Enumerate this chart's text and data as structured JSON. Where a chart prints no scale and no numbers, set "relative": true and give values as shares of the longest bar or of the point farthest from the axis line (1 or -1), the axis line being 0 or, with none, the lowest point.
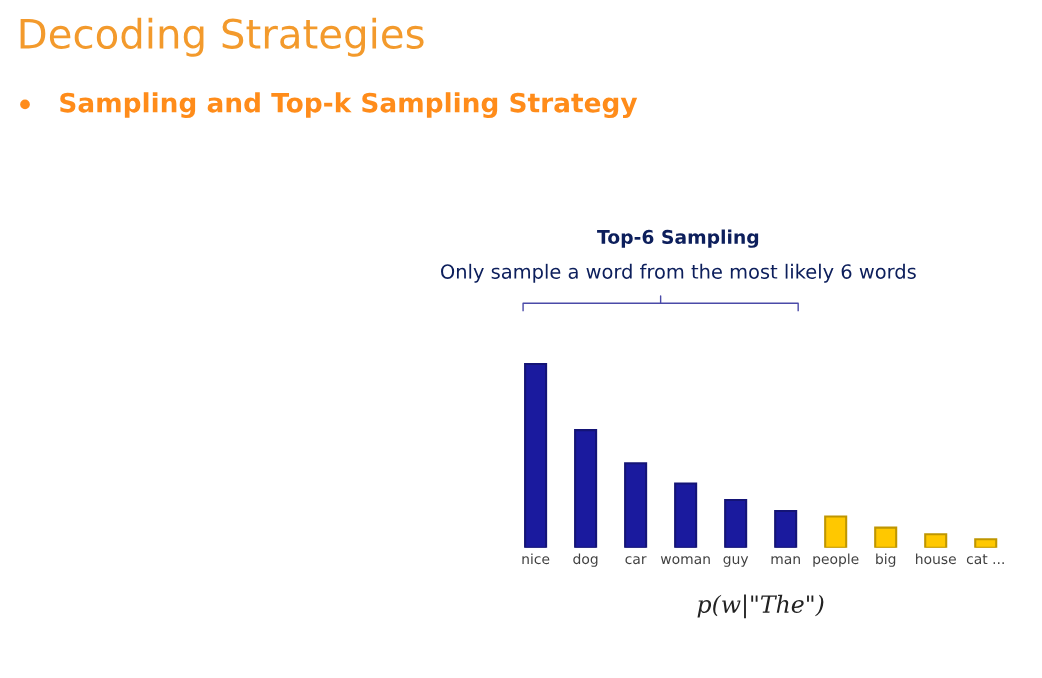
{
  "chart_data": {
    "type": "bar",
    "relative": true,
    "title": "Top-6 Sampling",
    "subtitle": "Only sample a word from the most likely 6 words",
    "xlabel": "p(w|\"The\")",
    "annotations": [
      "Decoding Strategies",
      "Sampling and Top-k Sampling Strategy"
    ],
    "categories": [
      "nice",
      "dog",
      "car",
      "woman",
      "guy",
      "man",
      "people",
      "big",
      "house",
      "cat ..."
    ],
    "values": [
      1,
      0.64,
      0.46,
      0.35,
      0.26,
      0.2,
      0.17,
      0.11,
      0.074,
      0.047
    ],
    "colors": [
      "#1a1a9e",
      "#1a1a9e",
      "#1a1a9e",
      "#1a1a9e",
      "#1a1a9e",
      "#1a1a9e",
      "#ffc800",
      "#ffc800",
      "#ffc800",
      "#ffc800"
    ],
    "grid": false,
    "legend": false
  }
}
